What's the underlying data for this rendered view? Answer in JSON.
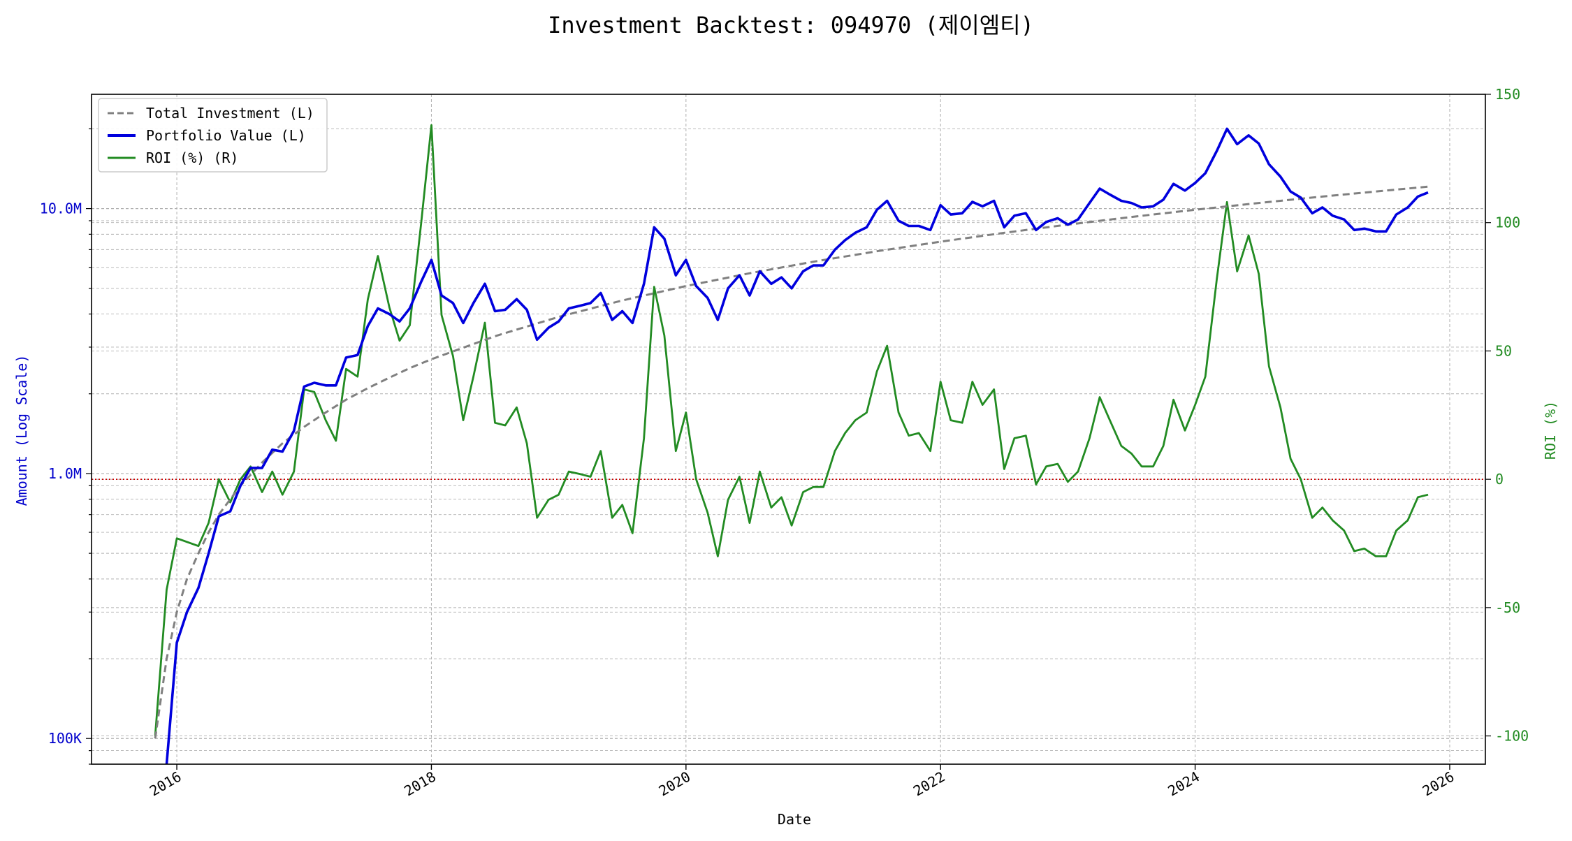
{
  "chart_data": {
    "type": "line",
    "title": "Investment Backtest: 094970 (제이엠티)",
    "xlabel": "Date",
    "ylabel_left": "Amount (Log Scale)",
    "ylabel_right": "ROI (%)",
    "left_axis": {
      "scale": "log",
      "range": [
        80000,
        27000000
      ],
      "ticks": [
        100000,
        1000000,
        10000000
      ],
      "tick_labels": [
        "100K",
        "1.0M",
        "10.0M"
      ],
      "color": "#0000cc"
    },
    "right_axis": {
      "scale": "linear",
      "range": [
        -111,
        150
      ],
      "ticks": [
        -100,
        -50,
        0,
        50,
        100,
        150
      ],
      "tick_labels": [
        "-100",
        "-50",
        "0",
        "50",
        "100",
        "150"
      ],
      "color": "#228b22"
    },
    "x_axis": {
      "range": [
        2015.33,
        2026.28
      ],
      "ticks": [
        2016,
        2018,
        2020,
        2022,
        2024,
        2026
      ],
      "tick_labels": [
        "2016",
        "2018",
        "2020",
        "2022",
        "2024",
        "2026"
      ]
    },
    "grid": true,
    "legend": {
      "position": "top-left",
      "entries": [
        "Total Investment (L)",
        "Portfolio Value (L)",
        "ROI (%) (R)"
      ]
    },
    "reference_line": {
      "axis": "right",
      "value": 0,
      "color": "#cc0000",
      "style": "dotted"
    },
    "series": [
      {
        "name": "Total Investment (L)",
        "axis": "left",
        "color": "#808080",
        "style": "dashed",
        "x": [
          2015.83,
          2015.92,
          2016.0,
          2016.08,
          2016.17,
          2016.25,
          2016.33,
          2016.5,
          2016.67,
          2016.83,
          2017.0,
          2017.17,
          2017.33,
          2017.5,
          2017.67,
          2017.83,
          2018.0,
          2018.5,
          2019.0,
          2019.5,
          2020.0,
          2020.5,
          2021.0,
          2021.5,
          2022.0,
          2022.5,
          2023.0,
          2023.5,
          2024.0,
          2024.5,
          2025.0,
          2025.5,
          2025.83
        ],
        "y": [
          100000,
          200000,
          300000,
          400000,
          500000,
          600000,
          700000,
          900000,
          1100000,
          1300000,
          1500000,
          1700000,
          1900000,
          2100000,
          2300000,
          2500000,
          2700000,
          3300000,
          3900000,
          4500000,
          5100000,
          5700000,
          6300000,
          6900000,
          7500000,
          8100000,
          8700000,
          9300000,
          9900000,
          10500000,
          11100000,
          11700000,
          12100000
        ]
      },
      {
        "name": "Portfolio Value (L)",
        "axis": "left",
        "color": "#0000dd",
        "style": "solid",
        "x": [
          2015.92,
          2016.0,
          2016.08,
          2016.17,
          2016.25,
          2016.33,
          2016.42,
          2016.5,
          2016.58,
          2016.67,
          2016.75,
          2016.83,
          2016.92,
          2017.0,
          2017.08,
          2017.17,
          2017.25,
          2017.33,
          2017.42,
          2017.5,
          2017.58,
          2017.67,
          2017.75,
          2017.83,
          2017.92,
          2018.0,
          2018.08,
          2018.17,
          2018.25,
          2018.33,
          2018.42,
          2018.5,
          2018.58,
          2018.67,
          2018.75,
          2018.83,
          2018.92,
          2019.0,
          2019.08,
          2019.17,
          2019.25,
          2019.33,
          2019.42,
          2019.5,
          2019.58,
          2019.67,
          2019.75,
          2019.83,
          2019.92,
          2020.0,
          2020.08,
          2020.17,
          2020.25,
          2020.33,
          2020.42,
          2020.5,
          2020.58,
          2020.67,
          2020.75,
          2020.83,
          2020.92,
          2021.0,
          2021.08,
          2021.17,
          2021.25,
          2021.33,
          2021.42,
          2021.5,
          2021.58,
          2021.67,
          2021.75,
          2021.83,
          2021.92,
          2022.0,
          2022.08,
          2022.17,
          2022.25,
          2022.33,
          2022.42,
          2022.5,
          2022.58,
          2022.67,
          2022.75,
          2022.83,
          2022.92,
          2023.0,
          2023.08,
          2023.17,
          2023.25,
          2023.33,
          2023.42,
          2023.5,
          2023.58,
          2023.67,
          2023.75,
          2023.83,
          2023.92,
          2024.0,
          2024.08,
          2024.17,
          2024.25,
          2024.33,
          2024.42,
          2024.5,
          2024.58,
          2024.67,
          2024.75,
          2024.83,
          2024.92,
          2025.0,
          2025.08,
          2025.17,
          2025.25,
          2025.33,
          2025.42,
          2025.5,
          2025.58,
          2025.67,
          2025.75,
          2025.83
        ],
        "y": [
          60000,
          230000,
          300000,
          370000,
          500000,
          690000,
          720000,
          900000,
          1050000,
          1050000,
          1230000,
          1210000,
          1450000,
          2130000,
          2200000,
          2150000,
          2150000,
          2740000,
          2800000,
          3600000,
          4200000,
          4000000,
          3750000,
          4200000,
          5300000,
          6400000,
          4700000,
          4400000,
          3700000,
          4400000,
          5200000,
          4100000,
          4150000,
          4550000,
          4150000,
          3200000,
          3550000,
          3750000,
          4200000,
          4300000,
          4400000,
          4800000,
          3800000,
          4100000,
          3700000,
          5200000,
          8500000,
          7700000,
          5600000,
          6400000,
          5100000,
          4600000,
          3800000,
          5000000,
          5600000,
          4700000,
          5800000,
          5200000,
          5500000,
          5000000,
          5800000,
          6100000,
          6100000,
          7000000,
          7600000,
          8100000,
          8500000,
          9900000,
          10700000,
          9000000,
          8600000,
          8600000,
          8300000,
          10300000,
          9500000,
          9600000,
          10600000,
          10200000,
          10700000,
          8500000,
          9400000,
          9600000,
          8300000,
          8900000,
          9200000,
          8700000,
          9100000,
          10500000,
          11900000,
          11300000,
          10700000,
          10500000,
          10100000,
          10200000,
          10800000,
          12400000,
          11700000,
          12500000,
          13600000,
          16500000,
          20000000,
          17500000,
          18900000,
          17600000,
          14700000,
          13200000,
          11600000,
          11000000,
          9600000,
          10100000,
          9400000,
          9100000,
          8300000,
          8400000,
          8200000,
          8200000,
          9500000,
          10100000,
          11100000,
          11500000
        ]
      },
      {
        "name": "ROI (%) (R)",
        "axis": "right",
        "color": "#228b22",
        "style": "solid",
        "x": [
          2015.83,
          2015.92,
          2016.0,
          2016.17,
          2016.25,
          2016.33,
          2016.42,
          2016.5,
          2016.58,
          2016.67,
          2016.75,
          2016.83,
          2016.92,
          2017.0,
          2017.08,
          2017.17,
          2017.25,
          2017.33,
          2017.42,
          2017.5,
          2017.58,
          2017.67,
          2017.75,
          2017.83,
          2017.92,
          2018.0,
          2018.08,
          2018.17,
          2018.25,
          2018.33,
          2018.42,
          2018.5,
          2018.58,
          2018.67,
          2018.75,
          2018.83,
          2018.92,
          2019.0,
          2019.08,
          2019.17,
          2019.25,
          2019.33,
          2019.42,
          2019.5,
          2019.58,
          2019.67,
          2019.75,
          2019.83,
          2019.92,
          2020.0,
          2020.08,
          2020.17,
          2020.25,
          2020.33,
          2020.42,
          2020.5,
          2020.58,
          2020.67,
          2020.75,
          2020.83,
          2020.92,
          2021.0,
          2021.08,
          2021.17,
          2021.25,
          2021.33,
          2021.42,
          2021.5,
          2021.58,
          2021.67,
          2021.75,
          2021.83,
          2021.92,
          2022.0,
          2022.08,
          2022.17,
          2022.25,
          2022.33,
          2022.42,
          2022.5,
          2022.58,
          2022.67,
          2022.75,
          2022.83,
          2022.92,
          2023.0,
          2023.08,
          2023.17,
          2023.25,
          2023.33,
          2023.42,
          2023.5,
          2023.58,
          2023.67,
          2023.75,
          2023.83,
          2023.92,
          2024.0,
          2024.08,
          2024.17,
          2024.25,
          2024.33,
          2024.42,
          2024.5,
          2024.58,
          2024.67,
          2024.75,
          2024.83,
          2024.92,
          2025.0,
          2025.08,
          2025.17,
          2025.25,
          2025.33,
          2025.42,
          2025.5,
          2025.58,
          2025.67,
          2025.75,
          2025.83
        ],
        "y": [
          -100,
          -43,
          -23,
          -26,
          -17,
          0,
          -9,
          0,
          5,
          -5,
          3,
          -6,
          3,
          35,
          34,
          23,
          15,
          43,
          40,
          70,
          87,
          67,
          54,
          60,
          100,
          138,
          64,
          48,
          23,
          40,
          61,
          22,
          21,
          28,
          14,
          -15,
          -8,
          -6,
          3,
          2,
          1,
          11,
          -15,
          -10,
          -21,
          16,
          75,
          56,
          11,
          26,
          0,
          -13,
          -30,
          -8,
          1,
          -17,
          3,
          -11,
          -7,
          -18,
          -5,
          -3,
          -3,
          11,
          18,
          23,
          26,
          42,
          52,
          26,
          17,
          18,
          11,
          38,
          23,
          22,
          38,
          29,
          35,
          4,
          16,
          17,
          -2,
          5,
          6,
          -1,
          3,
          16,
          32,
          23,
          13,
          10,
          5,
          5,
          13,
          31,
          19,
          29,
          40,
          78,
          108,
          81,
          95,
          80,
          44,
          28,
          8,
          0,
          -15,
          -11,
          -16,
          -20,
          -28,
          -27,
          -30,
          -30,
          -20,
          -16,
          -7,
          -6
        ]
      }
    ]
  }
}
